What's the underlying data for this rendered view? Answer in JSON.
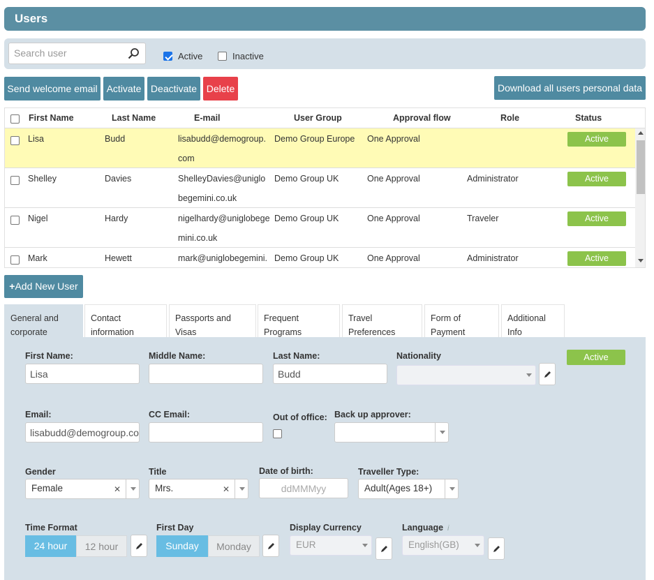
{
  "header": {
    "title": "Users"
  },
  "filters": {
    "search_placeholder": "Search user",
    "active_label": "Active",
    "active_checked": true,
    "inactive_label": "Inactive",
    "inactive_checked": false
  },
  "toolbar": {
    "send_welcome": "Send welcome email",
    "activate": "Activate",
    "deactivate": "Deactivate",
    "delete": "Delete",
    "download": "Download all users personal data"
  },
  "table": {
    "columns": [
      "First Name",
      "Last Name",
      "E-mail",
      "User Group",
      "Approval flow",
      "Role",
      "Status"
    ],
    "rows": [
      {
        "first": "Lisa",
        "last": "Budd",
        "email": "lisabudd@demogroup.com",
        "group": "Demo Group Europe",
        "approval": "One Approval",
        "role": "",
        "status": "Active",
        "selected": true
      },
      {
        "first": "Shelley",
        "last": "Davies",
        "email": "ShelleyDavies@uniglobegemini.co.uk",
        "group": "Demo Group UK",
        "approval": "One Approval",
        "role": "Administrator",
        "status": "Active",
        "selected": false
      },
      {
        "first": "Nigel",
        "last": "Hardy",
        "email": "nigelhardy@uniglobegemini.co.uk",
        "group": "Demo Group UK",
        "approval": "One Approval",
        "role": "Traveler",
        "status": "Active",
        "selected": false
      },
      {
        "first": "Mark",
        "last": "Hewett",
        "email": "mark@uniglobegemini.",
        "group": "Demo Group UK",
        "approval": "One Approval",
        "role": "Administrator",
        "status": "Active",
        "selected": false
      }
    ]
  },
  "add_user": {
    "label": "Add New User",
    "icon": "plus-icon"
  },
  "tabs": [
    {
      "label": "General and corporate settings",
      "active": true
    },
    {
      "label": "Contact information",
      "active": false
    },
    {
      "label": "Passports and Visas",
      "active": false
    },
    {
      "label": "Frequent Programs",
      "active": false
    },
    {
      "label": "Travel Preferences",
      "active": false
    },
    {
      "label": "Form of Payment",
      "active": false
    },
    {
      "label": "Additional Info",
      "active": false
    }
  ],
  "form": {
    "first_name": {
      "label": "First Name:",
      "value": "Lisa"
    },
    "middle_name": {
      "label": "Middle Name:",
      "value": ""
    },
    "last_name": {
      "label": "Last Name:",
      "value": "Budd"
    },
    "nationality": {
      "label": "Nationality",
      "value": ""
    },
    "status_badge": "Active",
    "email": {
      "label": "Email:",
      "value": "lisabudd@demogroup.com"
    },
    "cc_email": {
      "label": "CC Email:",
      "value": ""
    },
    "out_of_office": {
      "label": "Out of office:",
      "checked": false
    },
    "backup_approver": {
      "label": "Back up approver:",
      "value": ""
    },
    "gender": {
      "label": "Gender",
      "value": "Female"
    },
    "title": {
      "label": "Title",
      "value": "Mrs."
    },
    "dob": {
      "label": "Date of birth:",
      "placeholder": "ddMMMyy"
    },
    "traveller_type": {
      "label": "Traveller Type:",
      "value": "Adult(Ages 18+)"
    },
    "time_format": {
      "label": "Time Format",
      "options": [
        "24 hour",
        "12 hour"
      ],
      "selected": "24 hour"
    },
    "first_day": {
      "label": "First Day",
      "options": [
        "Sunday",
        "Monday"
      ],
      "selected": "Sunday"
    },
    "currency": {
      "label": "Display Currency",
      "value": "EUR"
    },
    "language": {
      "label": "Language",
      "value": "English(GB)",
      "info": "i"
    }
  },
  "colors": {
    "header": "#5b8fa3",
    "button": "#4f8aa1",
    "delete": "#e8414a",
    "active_badge": "#8cc34b",
    "selected_row": "#fffbb6",
    "panel": "#d5e0e8",
    "toggle_on": "#68bde3"
  }
}
